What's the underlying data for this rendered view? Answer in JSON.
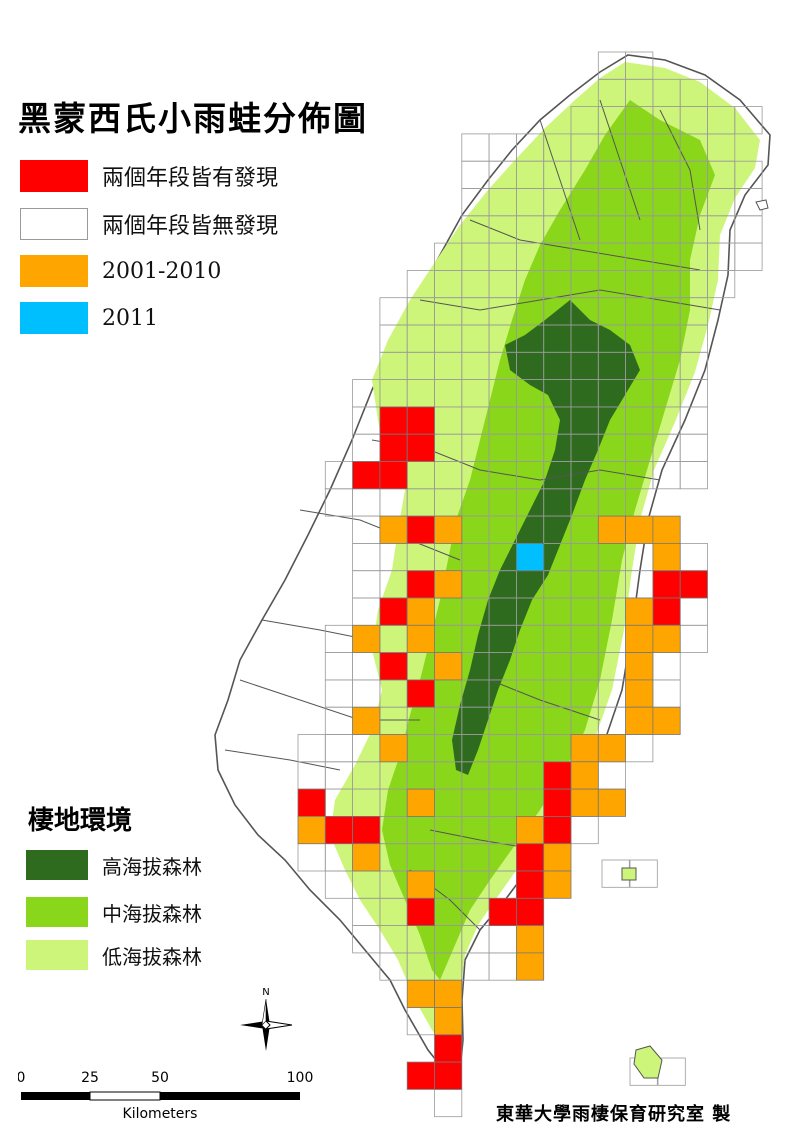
{
  "title": "黑蒙西氏小雨蛙分佈圖",
  "distribution_legend": [
    {
      "label": "兩個年段皆有發現",
      "color": "#ff0000"
    },
    {
      "label": "兩個年段皆無發現",
      "color": "#ffffff"
    },
    {
      "label": "2001-2010",
      "color": "#ffa500"
    },
    {
      "label": "2011",
      "color": "#00bfff"
    }
  ],
  "habitat": {
    "title": "棲地環境",
    "items": [
      {
        "label": "高海拔森林",
        "color": "#2e6b1f"
      },
      {
        "label": "中海拔森林",
        "color": "#8ad61a"
      },
      {
        "label": "低海拔森林",
        "color": "#cdf57a"
      }
    ]
  },
  "north_label": "N",
  "scale_bar": {
    "ticks": [
      "0",
      "25",
      "50",
      "100"
    ],
    "unit": "Kilometers"
  },
  "credit": "東華大學雨棲保育研究室 製",
  "colors": {
    "outline": "#555555",
    "grid": "#9a9a9a"
  }
}
